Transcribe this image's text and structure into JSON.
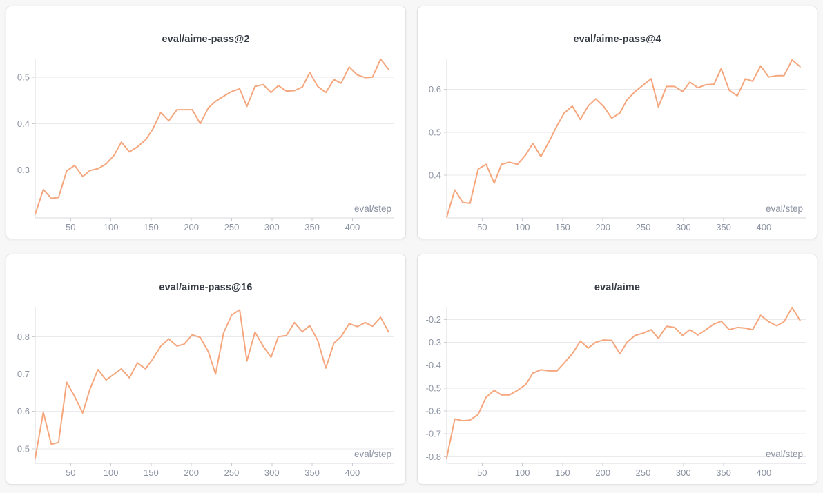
{
  "page": {
    "colors": {
      "background": "#f7f7f8",
      "card_background": "#ffffff",
      "card_border": "#e3e3e6",
      "title_color": "#363b44",
      "tick_color": "#8b92a1",
      "label_color": "#8b92a1",
      "accent_line": "#f5a67d"
    }
  },
  "chart_data": [
    {
      "type": "line",
      "title": "eval/aime-pass@2",
      "xlabel": "eval/step",
      "line_color": "#f5a67d",
      "legend": "none",
      "grid": "horizontal",
      "x": [
        6,
        16,
        26,
        35,
        45,
        55,
        65,
        74,
        84,
        94,
        104,
        113,
        123,
        133,
        143,
        152,
        162,
        172,
        182,
        191,
        201,
        211,
        221,
        230,
        240,
        250,
        260,
        269,
        279,
        289,
        299,
        308,
        318,
        328,
        338,
        347,
        357,
        367,
        377,
        386,
        396,
        406,
        416,
        425,
        435,
        445
      ],
      "values": [
        0.205,
        0.258,
        0.239,
        0.241,
        0.298,
        0.31,
        0.286,
        0.299,
        0.303,
        0.313,
        0.332,
        0.36,
        0.339,
        0.35,
        0.365,
        0.388,
        0.424,
        0.406,
        0.43,
        0.43,
        0.43,
        0.4,
        0.434,
        0.448,
        0.459,
        0.469,
        0.475,
        0.437,
        0.48,
        0.484,
        0.467,
        0.482,
        0.47,
        0.471,
        0.479,
        0.51,
        0.48,
        0.467,
        0.495,
        0.487,
        0.522,
        0.505,
        0.499,
        0.5,
        0.539,
        0.517
      ],
      "xlim": [
        6,
        452
      ],
      "ylim": [
        0.197,
        0.54
      ],
      "xticks": [
        50,
        100,
        150,
        200,
        250,
        300,
        350,
        400
      ],
      "yticks": [
        0.3,
        0.4,
        0.5
      ]
    },
    {
      "type": "line",
      "title": "eval/aime-pass@4",
      "xlabel": "eval/step",
      "line_color": "#f5a67d",
      "legend": "none",
      "grid": "horizontal",
      "x": [
        6,
        16,
        26,
        35,
        45,
        55,
        65,
        74,
        84,
        94,
        104,
        113,
        123,
        133,
        143,
        152,
        162,
        172,
        182,
        191,
        201,
        211,
        221,
        230,
        240,
        250,
        260,
        269,
        279,
        289,
        299,
        308,
        318,
        328,
        338,
        347,
        357,
        367,
        377,
        386,
        396,
        406,
        416,
        425,
        435,
        445
      ],
      "values": [
        0.302,
        0.365,
        0.336,
        0.334,
        0.414,
        0.425,
        0.381,
        0.425,
        0.43,
        0.425,
        0.447,
        0.474,
        0.443,
        0.478,
        0.515,
        0.545,
        0.561,
        0.53,
        0.562,
        0.578,
        0.56,
        0.533,
        0.545,
        0.576,
        0.595,
        0.61,
        0.625,
        0.559,
        0.607,
        0.607,
        0.595,
        0.617,
        0.604,
        0.611,
        0.612,
        0.649,
        0.598,
        0.585,
        0.625,
        0.619,
        0.655,
        0.629,
        0.632,
        0.632,
        0.669,
        0.653
      ],
      "xlim": [
        6,
        452
      ],
      "ylim": [
        0.3,
        0.672
      ],
      "xticks": [
        50,
        100,
        150,
        200,
        250,
        300,
        350,
        400
      ],
      "yticks": [
        0.4,
        0.5,
        0.6
      ]
    },
    {
      "type": "line",
      "title": "eval/aime-pass@16",
      "xlabel": "eval/step",
      "line_color": "#f5a67d",
      "legend": "none",
      "grid": "horizontal",
      "x": [
        6,
        16,
        26,
        35,
        45,
        55,
        65,
        74,
        84,
        94,
        104,
        113,
        123,
        133,
        143,
        152,
        162,
        172,
        182,
        191,
        201,
        211,
        221,
        230,
        240,
        250,
        260,
        269,
        279,
        289,
        299,
        308,
        318,
        328,
        338,
        347,
        357,
        367,
        377,
        386,
        396,
        406,
        416,
        425,
        435,
        445
      ],
      "values": [
        0.475,
        0.598,
        0.512,
        0.517,
        0.678,
        0.64,
        0.596,
        0.66,
        0.712,
        0.684,
        0.7,
        0.714,
        0.69,
        0.73,
        0.714,
        0.74,
        0.775,
        0.794,
        0.775,
        0.78,
        0.805,
        0.798,
        0.76,
        0.7,
        0.81,
        0.858,
        0.872,
        0.735,
        0.812,
        0.775,
        0.745,
        0.8,
        0.803,
        0.838,
        0.813,
        0.83,
        0.79,
        0.716,
        0.783,
        0.8,
        0.835,
        0.827,
        0.838,
        0.828,
        0.852,
        0.813
      ],
      "xlim": [
        6,
        452
      ],
      "ylim": [
        0.461,
        0.88
      ],
      "xticks": [
        50,
        100,
        150,
        200,
        250,
        300,
        350,
        400
      ],
      "yticks": [
        0.5,
        0.6,
        0.7,
        0.8
      ]
    },
    {
      "type": "line",
      "title": "eval/aime",
      "xlabel": "eval/step",
      "line_color": "#f5a67d",
      "legend": "none",
      "grid": "horizontal",
      "x": [
        6,
        16,
        26,
        35,
        45,
        55,
        65,
        74,
        84,
        94,
        104,
        113,
        123,
        133,
        143,
        152,
        162,
        172,
        182,
        191,
        201,
        211,
        221,
        230,
        240,
        250,
        260,
        269,
        279,
        289,
        299,
        308,
        318,
        328,
        338,
        347,
        357,
        367,
        377,
        386,
        396,
        406,
        416,
        425,
        435,
        445
      ],
      "values": [
        -0.805,
        -0.635,
        -0.643,
        -0.64,
        -0.615,
        -0.54,
        -0.51,
        -0.53,
        -0.53,
        -0.51,
        -0.485,
        -0.435,
        -0.42,
        -0.425,
        -0.425,
        -0.39,
        -0.35,
        -0.295,
        -0.325,
        -0.3,
        -0.29,
        -0.292,
        -0.35,
        -0.3,
        -0.27,
        -0.26,
        -0.245,
        -0.283,
        -0.23,
        -0.235,
        -0.27,
        -0.245,
        -0.268,
        -0.245,
        -0.22,
        -0.208,
        -0.245,
        -0.235,
        -0.238,
        -0.245,
        -0.182,
        -0.21,
        -0.228,
        -0.21,
        -0.148,
        -0.205
      ],
      "xlim": [
        6,
        452
      ],
      "ylim": [
        -0.829,
        -0.145
      ],
      "xticks": [
        50,
        100,
        150,
        200,
        250,
        300,
        350,
        400
      ],
      "yticks": [
        -0.8,
        -0.7,
        -0.6,
        -0.5,
        -0.4,
        -0.3,
        -0.2
      ]
    }
  ]
}
